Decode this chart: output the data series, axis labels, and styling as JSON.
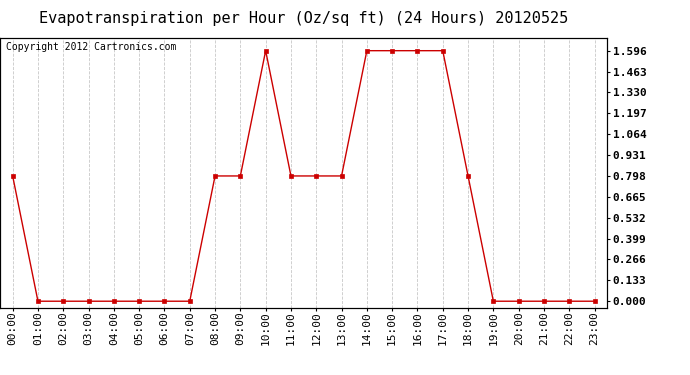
{
  "title": "Evapotranspiration per Hour (Oz/sq ft) (24 Hours) 20120525",
  "copyright": "Copyright 2012 Cartronics.com",
  "x_labels": [
    "00:00",
    "01:00",
    "02:00",
    "03:00",
    "04:00",
    "05:00",
    "06:00",
    "07:00",
    "08:00",
    "09:00",
    "10:00",
    "11:00",
    "12:00",
    "13:00",
    "14:00",
    "15:00",
    "16:00",
    "17:00",
    "18:00",
    "19:00",
    "20:00",
    "21:00",
    "22:00",
    "23:00"
  ],
  "y_values": [
    0.798,
    0.0,
    0.0,
    0.0,
    0.0,
    0.0,
    0.0,
    0.0,
    0.798,
    0.798,
    1.596,
    0.798,
    0.798,
    0.798,
    1.596,
    1.596,
    1.596,
    1.596,
    0.798,
    0.0,
    0.0,
    0.0,
    0.0,
    0.0
  ],
  "y_ticks": [
    0.0,
    0.133,
    0.266,
    0.399,
    0.532,
    0.665,
    0.798,
    0.931,
    1.064,
    1.197,
    1.33,
    1.463,
    1.596
  ],
  "line_color": "#cc0000",
  "marker_color": "#cc0000",
  "bg_color": "#ffffff",
  "grid_color": "#c8c8c8",
  "title_fontsize": 11,
  "copyright_fontsize": 7,
  "tick_fontsize": 8,
  "ylim_min": -0.04,
  "ylim_max": 1.68
}
